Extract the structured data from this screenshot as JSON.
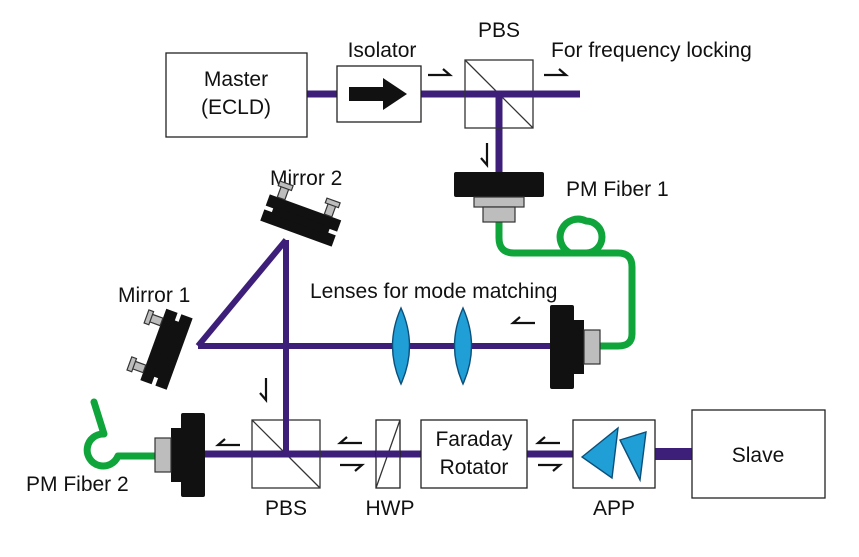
{
  "colors": {
    "beam": "#3d1f7a",
    "fiber": "#0fa53a",
    "lens": "#1f9fd6",
    "mount": "#111111",
    "connector": "#bdbdbd"
  },
  "labels": {
    "master_line1": "Master",
    "master_line2": "(ECLD)",
    "isolator": "Isolator",
    "pbs_top": "PBS",
    "freq_locking": "For frequency locking",
    "pm_fiber_1": "PM Fiber 1",
    "mirror_2": "Mirror 2",
    "mirror_1": "Mirror 1",
    "lenses": "Lenses for mode matching",
    "pm_fiber_2": "PM Fiber 2",
    "pbs_bottom": "PBS",
    "hwp": "HWP",
    "faraday_line1": "Faraday",
    "faraday_line2": "Rotator",
    "app": "APP",
    "slave": "Slave"
  }
}
